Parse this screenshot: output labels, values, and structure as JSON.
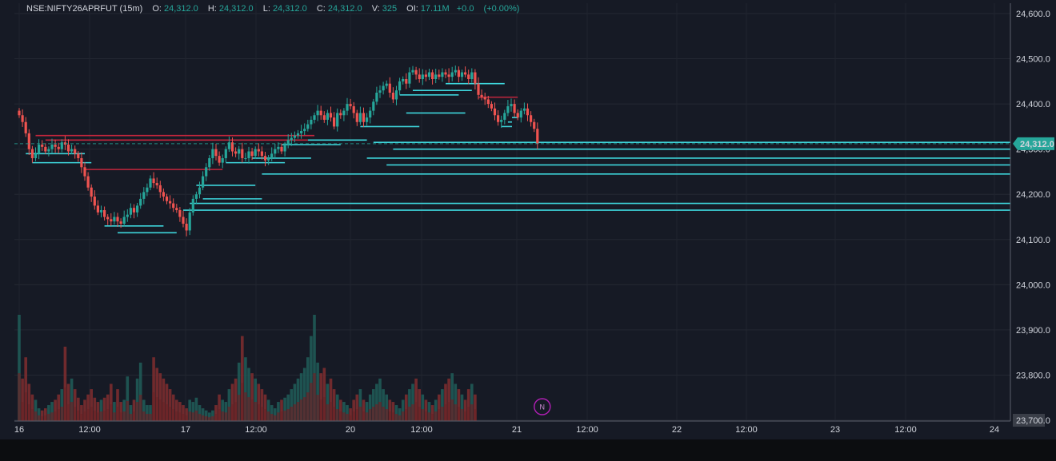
{
  "legend": {
    "symbol": "NSE:NIFTY26APRFUT (15m)",
    "open_label": "O:",
    "open_value": "24,312.0",
    "high_label": "H:",
    "high_value": "24,312.0",
    "low_label": "L:",
    "low_value": "24,312.0",
    "close_label": "C:",
    "close_value": "24,312.0",
    "volume_label": "V:",
    "volume_value": "325",
    "oi_label": "OI:",
    "oi_value": "17.11M",
    "change_value": "+0.0",
    "change_pct": "(+0.00%)"
  },
  "colors": {
    "background": "#161a25",
    "up": "#26a69a",
    "down": "#ef5350",
    "support_line": "#3ed6dc",
    "resistance_line": "#c2263c",
    "price_tag": "#26a69a",
    "news_marker": "#b11fb5"
  },
  "chart_data": {
    "type": "candlestick",
    "y_axis": {
      "ticks": [
        24600,
        24500,
        24400,
        24300,
        24200,
        24100,
        24000,
        23900,
        23800,
        23700
      ],
      "tick_labels": [
        "24,600.0",
        "24,500.0",
        "24,400.0",
        "24,300.0",
        "24,200.0",
        "24,100.0",
        "24,000.0",
        "23,900.0",
        "23,800.0",
        "23,700.0"
      ],
      "range": [
        23700,
        24610
      ]
    },
    "x_axis": {
      "ticks": [
        "16",
        "12:00",
        "17",
        "12:00",
        "20",
        "12:00",
        "21",
        "12:00",
        "22",
        "12:00",
        "23",
        "12:00",
        "24"
      ]
    },
    "last_price": 24312.0,
    "last_price_label": "24,312.0",
    "news_marker": "N",
    "price_path": [
      24375,
      24360,
      24335,
      24300,
      24280,
      24290,
      24310,
      24305,
      24295,
      24300,
      24310,
      24305,
      24300,
      24315,
      24310,
      24295,
      24300,
      24290,
      24280,
      24260,
      24240,
      24215,
      24195,
      24175,
      24160,
      24165,
      24150,
      24145,
      24140,
      24150,
      24140,
      24135,
      24150,
      24155,
      24170,
      24160,
      24175,
      24190,
      24205,
      24215,
      24235,
      24225,
      24220,
      24205,
      24195,
      24185,
      24180,
      24170,
      24165,
      24150,
      24135,
      24120,
      24160,
      24190,
      24200,
      24215,
      24240,
      24260,
      24280,
      24300,
      24285,
      24270,
      24280,
      24300,
      24315,
      24295,
      24290,
      24300,
      24280,
      24280,
      24295,
      24285,
      24300,
      24295,
      24285,
      24275,
      24280,
      24290,
      24300,
      24305,
      24295,
      24310,
      24320,
      24325,
      24330,
      24335,
      24340,
      24345,
      24355,
      24365,
      24375,
      24385,
      24375,
      24365,
      24380,
      24370,
      24350,
      24380,
      24375,
      24385,
      24400,
      24395,
      24380,
      24360,
      24380,
      24360,
      24370,
      24385,
      24405,
      24425,
      24430,
      24440,
      24445,
      24425,
      24410,
      24430,
      24450,
      24455,
      24445,
      24470,
      24475,
      24465,
      24455,
      24465,
      24460,
      24470,
      24455,
      24465,
      24460,
      24470,
      24465,
      24460,
      24470,
      24475,
      24460,
      24470,
      24465,
      24455,
      24470,
      24445,
      24420,
      24415,
      24410,
      24400,
      24390,
      24375,
      24360,
      24365,
      24380,
      24395,
      24400,
      24380,
      24370,
      24385,
      24390,
      24375,
      24360,
      24345,
      24312
    ],
    "volume_path": [
      100,
      40,
      60,
      35,
      25,
      20,
      12,
      10,
      12,
      15,
      18,
      20,
      25,
      30,
      70,
      35,
      40,
      30,
      22,
      15,
      20,
      25,
      30,
      22,
      18,
      20,
      22,
      25,
      35,
      18,
      30,
      18,
      20,
      42,
      15,
      20,
      40,
      55,
      20,
      15,
      15,
      60,
      50,
      45,
      40,
      35,
      30,
      25,
      20,
      18,
      15,
      12,
      20,
      18,
      22,
      15,
      12,
      10,
      8,
      10,
      15,
      25,
      20,
      18,
      30,
      35,
      40,
      55,
      80,
      60,
      50,
      45,
      40,
      35,
      30,
      25,
      20,
      15,
      12,
      18,
      20,
      22,
      25,
      30,
      35,
      40,
      45,
      50,
      60,
      80,
      100,
      55,
      45,
      50,
      35,
      40,
      30,
      25,
      20,
      18,
      15,
      12,
      20,
      25,
      30,
      20,
      18,
      25,
      30,
      35,
      40,
      30,
      25,
      20,
      18,
      15,
      12,
      20,
      25,
      30,
      35,
      40,
      30,
      25,
      20,
      18,
      15,
      20,
      25,
      30,
      35,
      40,
      45,
      35,
      30,
      25,
      20,
      30,
      35,
      25
    ],
    "support_lines": [
      {
        "start_index": 2,
        "price": 24290
      },
      {
        "start_index": 4,
        "price": 24270
      },
      {
        "start_index": 26,
        "price": 24130
      },
      {
        "start_index": 30,
        "price": 24115
      },
      {
        "start_index": 54,
        "price": 24220
      },
      {
        "start_index": 56,
        "price": 24190
      },
      {
        "start_index": 63,
        "price": 24270
      },
      {
        "start_index": 71,
        "price": 24280
      },
      {
        "start_index": 80,
        "price": 24310
      },
      {
        "start_index": 88,
        "price": 24320
      },
      {
        "start_index": 104,
        "price": 24350
      },
      {
        "start_index": 116,
        "price": 24420
      },
      {
        "start_index": 118,
        "price": 24380
      },
      {
        "start_index": 120,
        "price": 24430
      },
      {
        "start_index": 130,
        "price": 24445
      },
      {
        "start_index": 147,
        "price": 24350
      },
      {
        "start_index": 149,
        "price": 24360
      },
      {
        "start_index": 152,
        "price": 24370
      },
      {
        "start_index": 108,
        "price": 24315,
        "extend": true
      },
      {
        "start_index": 112,
        "price": 24265,
        "extend": true
      },
      {
        "start_index": 74,
        "price": 24245,
        "extend": true
      },
      {
        "start_index": 52,
        "price": 24180,
        "extend": true
      },
      {
        "start_index": 50,
        "price": 24165,
        "extend": true
      },
      {
        "start_index": 114,
        "price": 24300,
        "extend": true
      },
      {
        "start_index": 106,
        "price": 24280,
        "extend": true
      }
    ],
    "resistance_lines": [
      {
        "start_index": 5,
        "end_index": 90,
        "price": 24330
      },
      {
        "start_index": 8,
        "end_index": 88,
        "price": 24320
      },
      {
        "start_index": 20,
        "end_index": 62,
        "price": 24255
      },
      {
        "start_index": 140,
        "end_index": 152,
        "price": 24415
      }
    ]
  }
}
